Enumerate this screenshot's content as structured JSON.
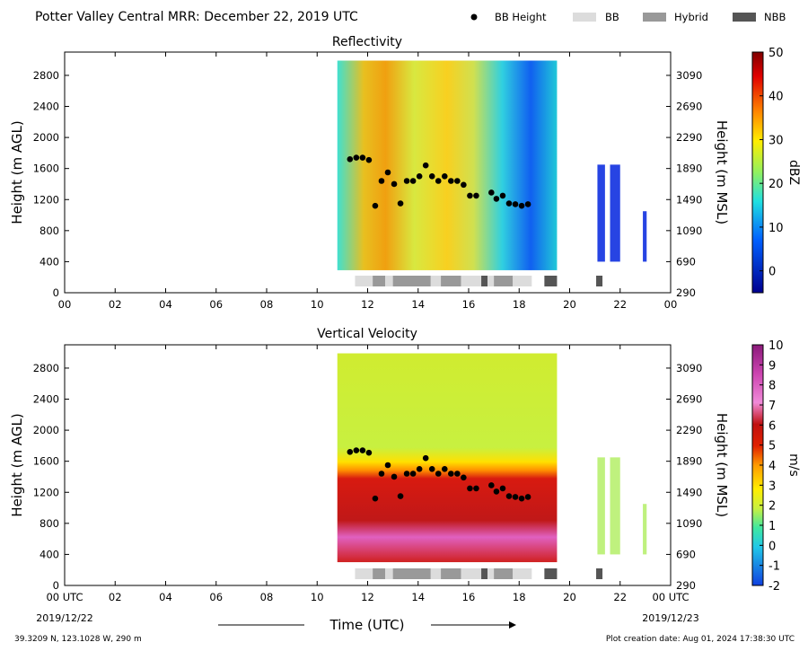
{
  "header": {
    "title": "Potter Valley Central MRR:  December 22, 2019 UTC",
    "legend": {
      "bb_height": "BB Height",
      "bb": "BB",
      "hybrid": "Hybrid",
      "nbb": "NBB"
    }
  },
  "footer": {
    "location": "39.3209 N, 123.1028 W, 290 m",
    "creation_date": "Plot creation date: Aug 01, 2024 17:38:30 UTC",
    "xlabel": "Time (UTC)",
    "start_label": "00 UTC",
    "start_date": "2019/12/22",
    "end_label": "00 UTC",
    "end_date": "2019/12/23"
  },
  "colors": {
    "bb": "#dcdcdc",
    "hybrid": "#999999",
    "nbb": "#555555",
    "bb_height_marker": "#000000"
  },
  "chart_data": [
    {
      "type": "heatmap",
      "title": "Reflectivity",
      "ylabel": "Height (m AGL)",
      "ylabel_right": "Height (m MSL)",
      "colorbar_label": "dBZ",
      "colorbar_ticks": [
        "50",
        "40",
        "30",
        "20",
        "10",
        "0"
      ],
      "colorbar_range": [
        -5,
        50
      ],
      "x_ticks": [
        "00",
        "02",
        "04",
        "06",
        "08",
        "10",
        "12",
        "14",
        "16",
        "18",
        "20",
        "22",
        "00"
      ],
      "y_ticks": [
        "0",
        "400",
        "800",
        "1200",
        "1600",
        "2000",
        "2400",
        "2800"
      ],
      "y_ticks_right": [
        "290",
        "690",
        "1090",
        "1490",
        "1890",
        "2290",
        "2690",
        "3090"
      ],
      "xlim": [
        0,
        24
      ],
      "ylim": [
        0,
        3100
      ]
    },
    {
      "type": "heatmap",
      "title": "Vertical Velocity",
      "ylabel": "Height (m AGL)",
      "ylabel_right": "Height (m MSL)",
      "colorbar_label": "m/s",
      "colorbar_ticks": [
        "10",
        "9",
        "8",
        "7",
        "6",
        "5",
        "4",
        "3",
        "2",
        "1",
        "0",
        "-1",
        "-2"
      ],
      "colorbar_range": [
        -2,
        10
      ],
      "x_ticks": [
        "00",
        "02",
        "04",
        "06",
        "08",
        "10",
        "12",
        "14",
        "16",
        "18",
        "20",
        "22",
        "00"
      ],
      "y_ticks": [
        "0",
        "400",
        "800",
        "1200",
        "1600",
        "2000",
        "2400",
        "2800"
      ],
      "y_ticks_right": [
        "290",
        "690",
        "1090",
        "1490",
        "1890",
        "2290",
        "2690",
        "3090"
      ],
      "xlim": [
        0,
        24
      ],
      "ylim": [
        0,
        3100
      ]
    }
  ],
  "echo_bands": {
    "main": [
      10.8,
      19.5
    ],
    "isolated": [
      [
        21.1,
        21.4
      ],
      [
        21.6,
        22.0
      ],
      [
        22.9,
        23.05
      ]
    ]
  },
  "bb_height": {
    "x": [
      11.3,
      11.55,
      11.8,
      12.05,
      12.3,
      12.55,
      12.8,
      13.05,
      13.3,
      13.55,
      13.8,
      14.05,
      14.3,
      14.55,
      14.8,
      15.05,
      15.3,
      15.55,
      15.8,
      16.05,
      16.3,
      16.9,
      17.1,
      17.35,
      17.6,
      17.85,
      18.1,
      18.35
    ],
    "y": [
      1720,
      1740,
      1740,
      1710,
      1120,
      1440,
      1550,
      1400,
      1150,
      1440,
      1440,
      1500,
      1640,
      1500,
      1440,
      1500,
      1440,
      1440,
      1390,
      1250,
      1250,
      1290,
      1210,
      1250,
      1150,
      1140,
      1120,
      1140
    ]
  },
  "regime_bar": [
    {
      "type": "BB",
      "start": 11.5,
      "end": 12.2
    },
    {
      "type": "Hybrid",
      "start": 12.2,
      "end": 12.7
    },
    {
      "type": "BB",
      "start": 12.7,
      "end": 13.0
    },
    {
      "type": "Hybrid",
      "start": 13.0,
      "end": 14.5
    },
    {
      "type": "BB",
      "start": 14.5,
      "end": 14.9
    },
    {
      "type": "Hybrid",
      "start": 14.9,
      "end": 15.7
    },
    {
      "type": "BB",
      "start": 15.7,
      "end": 16.5
    },
    {
      "type": "NBB",
      "start": 16.5,
      "end": 16.75
    },
    {
      "type": "BB",
      "start": 16.75,
      "end": 17.0
    },
    {
      "type": "Hybrid",
      "start": 17.0,
      "end": 17.75
    },
    {
      "type": "BB",
      "start": 17.75,
      "end": 18.5
    },
    {
      "type": "NBB",
      "start": 19.0,
      "end": 19.5
    },
    {
      "type": "NBB",
      "start": 21.05,
      "end": 21.3
    }
  ]
}
